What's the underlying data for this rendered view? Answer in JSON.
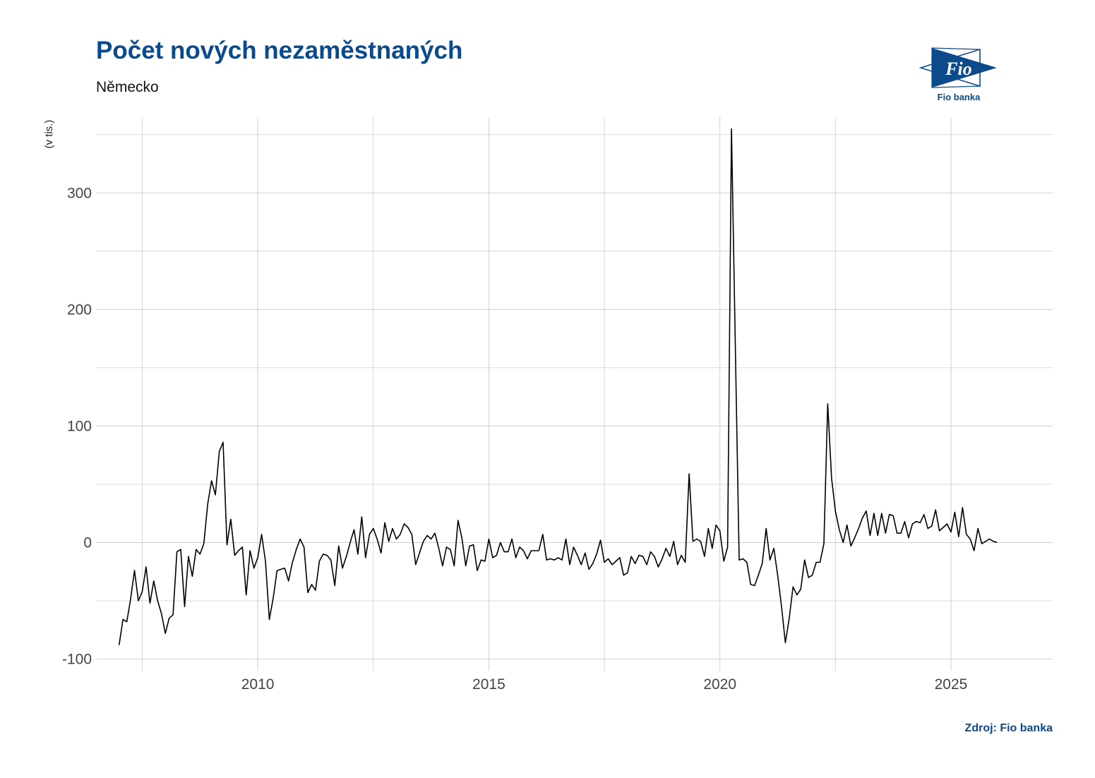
{
  "title": "Počet nových nezaměstnaných",
  "subtitle": "Německo",
  "source": "Zdroj: Fio banka",
  "logo": {
    "mark": "Fio",
    "name": "Fio banka"
  },
  "colors": {
    "brand": "#0b4a8b",
    "line": "#000000",
    "grid": "#cfcfcf"
  },
  "chart_data": {
    "type": "line",
    "title": "Počet nových nezaměstnaných",
    "subtitle": "Německo",
    "xlabel": "",
    "ylabel": "(v tis.)",
    "xlim": [
      2006.5,
      2027.2
    ],
    "ylim": [
      -110,
      365
    ],
    "x_ticks": [
      2010,
      2015,
      2020,
      2025
    ],
    "x_tick_labels": [
      "2010",
      "2015",
      "2020",
      "2025"
    ],
    "x_minor_ticks": [
      2007.5,
      2012.5,
      2017.5,
      2022.5
    ],
    "y_ticks": [
      -100,
      0,
      100,
      200,
      300
    ],
    "y_tick_labels": [
      "-100",
      "0",
      "100",
      "200",
      "300"
    ],
    "y_minor_ticks": [
      -50,
      50,
      150,
      250,
      350
    ],
    "grid": true,
    "legend": "none",
    "x_start": 2007.0,
    "x_step": 0.0833333,
    "values": [
      -88,
      -66,
      -68,
      -48,
      -24,
      -50,
      -42,
      -21,
      -52,
      -33,
      -50,
      -61,
      -78,
      -65,
      -62,
      -8,
      -6,
      -55,
      -12,
      -29,
      -6,
      -10,
      -1,
      33,
      53,
      41,
      78,
      86,
      -2,
      20,
      -11,
      -7,
      -4,
      -45,
      -7,
      -22,
      -13,
      7,
      -16,
      -66,
      -48,
      -24,
      -23,
      -22,
      -33,
      -17,
      -6,
      3,
      -4,
      -43,
      -36,
      -41,
      -16,
      -10,
      -11,
      -15,
      -37,
      -3,
      -22,
      -12,
      0,
      11,
      -10,
      22,
      -13,
      7,
      12,
      3,
      -9,
      17,
      1,
      12,
      3,
      7,
      16,
      13,
      7,
      -19,
      -9,
      1,
      6,
      3,
      8,
      -5,
      -20,
      -4,
      -6,
      -20,
      19,
      4,
      -20,
      -3,
      -2,
      -24,
      -15,
      -16,
      3,
      -13,
      -11,
      0,
      -8,
      -8,
      3,
      -13,
      -4,
      -7,
      -14,
      -7,
      -7,
      -7,
      7,
      -15,
      -14,
      -15,
      -13,
      -15,
      3,
      -19,
      -4,
      -11,
      -19,
      -9,
      -23,
      -18,
      -10,
      2,
      -17,
      -14,
      -19,
      -16,
      -13,
      -28,
      -26,
      -12,
      -18,
      -11,
      -12,
      -19,
      -8,
      -12,
      -21,
      -14,
      -5,
      -12,
      1,
      -19,
      -11,
      -17,
      59,
      1,
      3,
      1,
      -12,
      12,
      -5,
      15,
      10,
      -16,
      -4,
      355,
      170,
      -15,
      -14,
      -17,
      -36,
      -37,
      -28,
      -18,
      12,
      -15,
      -5,
      -28,
      -55,
      -86,
      -65,
      -38,
      -45,
      -40,
      -15,
      -30,
      -28,
      -17,
      -17,
      -1,
      119,
      55,
      27,
      11,
      0,
      15,
      -3,
      4,
      12,
      21,
      27,
      6,
      25,
      6,
      25,
      8,
      24,
      23,
      8,
      8,
      18,
      4,
      16,
      18,
      17,
      24,
      12,
      14,
      28,
      10,
      13,
      16,
      9,
      26,
      5,
      30,
      7,
      3,
      -7,
      12,
      -1,
      1,
      3,
      1,
      0
    ]
  }
}
